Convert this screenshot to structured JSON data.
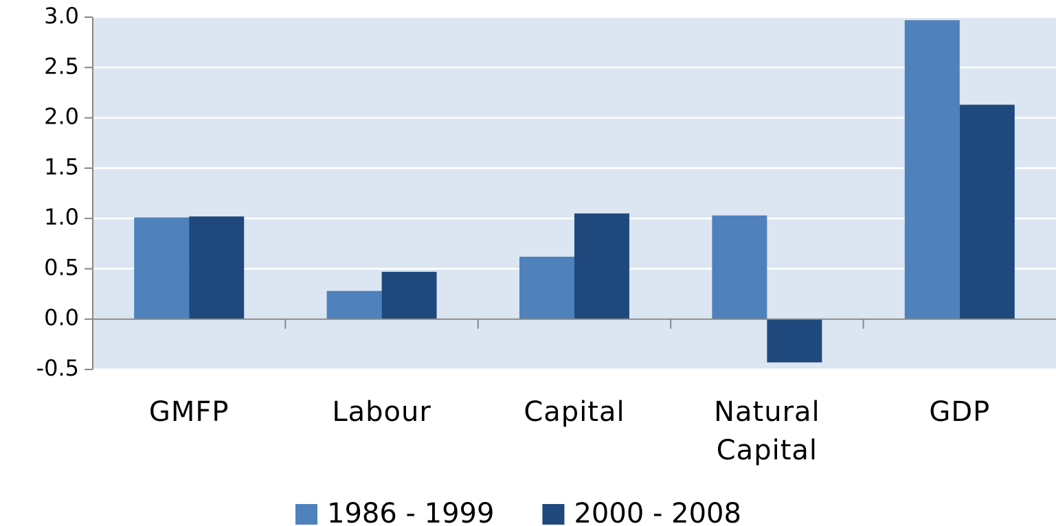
{
  "chart_data": {
    "type": "bar",
    "categories": [
      "GMFP",
      "Labour",
      "Capital",
      "Natural Capital",
      "GDP"
    ],
    "series": [
      {
        "name": "1986 - 1999",
        "color": "#4f81bd",
        "values": [
          1.01,
          0.28,
          0.62,
          1.03,
          2.97
        ]
      },
      {
        "name": "2000 - 2008",
        "color": "#1f497d",
        "values": [
          1.02,
          0.47,
          1.05,
          -0.43,
          2.13
        ]
      }
    ],
    "ylim": [
      -0.5,
      3
    ],
    "yticks": [
      -0.5,
      {
        "value": 0,
        "label": "0.0"
      },
      0.5,
      {
        "value": 1,
        "label": "1.0"
      },
      1.5,
      {
        "value": 2,
        "label": "2.0"
      },
      2.5,
      {
        "value": 3,
        "label": "3.0"
      }
    ],
    "grid": true,
    "legend": "bottom"
  }
}
